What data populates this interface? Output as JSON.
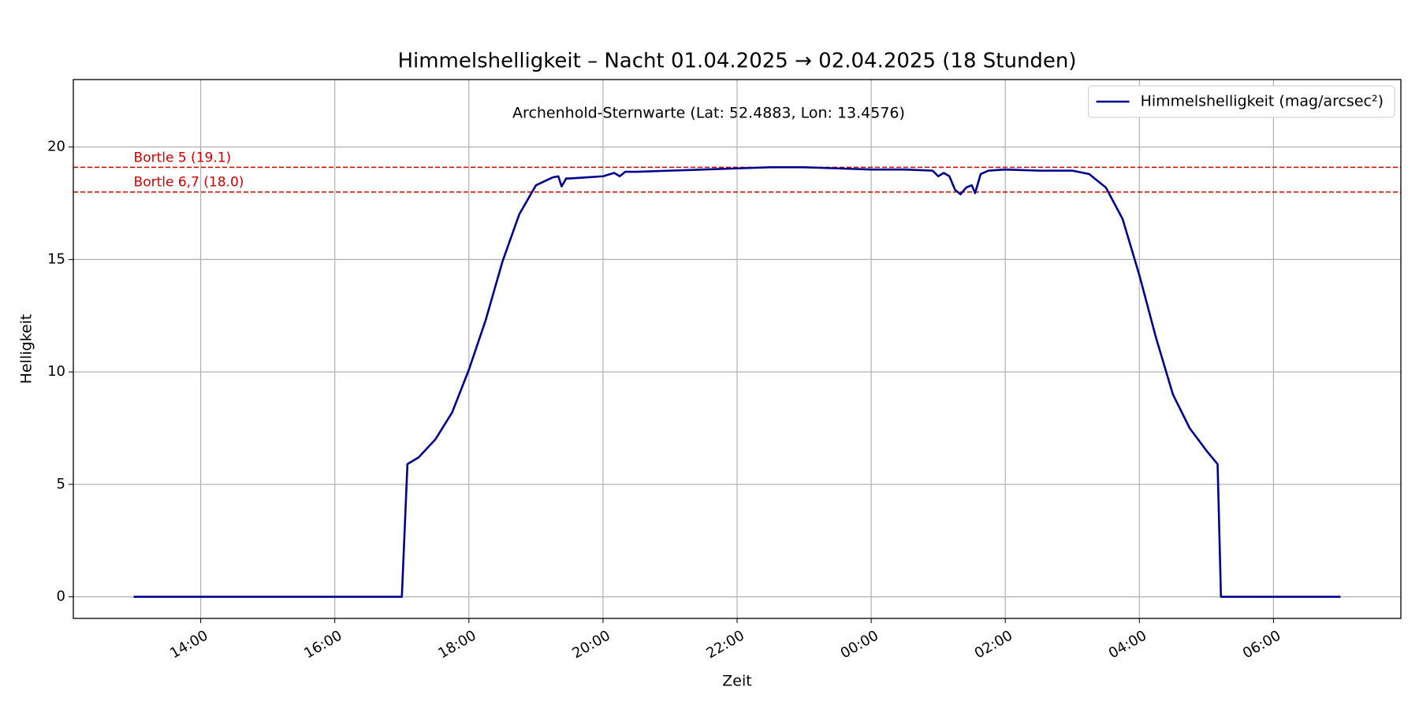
{
  "chart_data": {
    "type": "line",
    "title": "Himmelshelligkeit – Nacht 01.04.2025 → 02.04.2025 (18 Stunden)",
    "subtitle": "Archenhold-Sternwarte (Lat: 52.4883, Lon: 13.4576)",
    "x_label": "Zeit",
    "y_label": "Helligkeit",
    "x": [
      "13:00",
      "14:00",
      "15:00",
      "16:00",
      "17:00",
      "17:05",
      "17:15",
      "17:30",
      "17:45",
      "18:00",
      "18:15",
      "18:30",
      "18:45",
      "19:00",
      "19:15",
      "19:20",
      "19:23",
      "19:27",
      "19:30",
      "19:45",
      "20:00",
      "20:10",
      "20:15",
      "20:20",
      "20:30",
      "21:00",
      "21:30",
      "22:00",
      "22:30",
      "23:00",
      "23:30",
      "00:00",
      "00:30",
      "00:55",
      "01:00",
      "01:05",
      "01:10",
      "01:15",
      "01:20",
      "01:25",
      "01:30",
      "01:33",
      "01:38",
      "01:45",
      "02:00",
      "02:30",
      "03:00",
      "03:15",
      "03:30",
      "03:45",
      "04:00",
      "04:15",
      "04:30",
      "04:45",
      "05:00",
      "05:10",
      "05:13",
      "06:00",
      "07:00"
    ],
    "series": [
      {
        "name": "Himmelshelligkeit (mag/arcsec²)",
        "color": "#00008b",
        "values": [
          0,
          0,
          0,
          0,
          0,
          5.9,
          6.2,
          7.0,
          8.2,
          10.1,
          12.3,
          14.9,
          17.0,
          18.3,
          18.65,
          18.7,
          18.25,
          18.6,
          18.6,
          18.65,
          18.7,
          18.85,
          18.7,
          18.9,
          18.9,
          18.95,
          19.0,
          19.05,
          19.1,
          19.1,
          19.05,
          19.0,
          19.0,
          18.95,
          18.7,
          18.85,
          18.7,
          18.1,
          17.9,
          18.2,
          18.3,
          17.95,
          18.8,
          18.95,
          19.0,
          18.95,
          18.95,
          18.8,
          18.2,
          16.8,
          14.3,
          11.5,
          9.0,
          7.5,
          6.5,
          5.9,
          0,
          0,
          0
        ]
      }
    ],
    "reference_lines": [
      {
        "label": "Bortle 5 (19.1)",
        "value": 19.1,
        "color": "#cc0000"
      },
      {
        "label": "Bortle 6,7 (18.0)",
        "value": 18.0,
        "color": "#cc0000"
      }
    ],
    "xlim": [
      "12:06",
      "07:54"
    ],
    "xticks": [
      "14:00",
      "16:00",
      "18:00",
      "20:00",
      "22:00",
      "00:00",
      "02:00",
      "04:00",
      "06:00"
    ],
    "ylim": [
      -0.96,
      23.0
    ],
    "yticks": [
      0,
      5,
      10,
      15,
      20
    ],
    "grid": true,
    "legend": "upper right"
  }
}
